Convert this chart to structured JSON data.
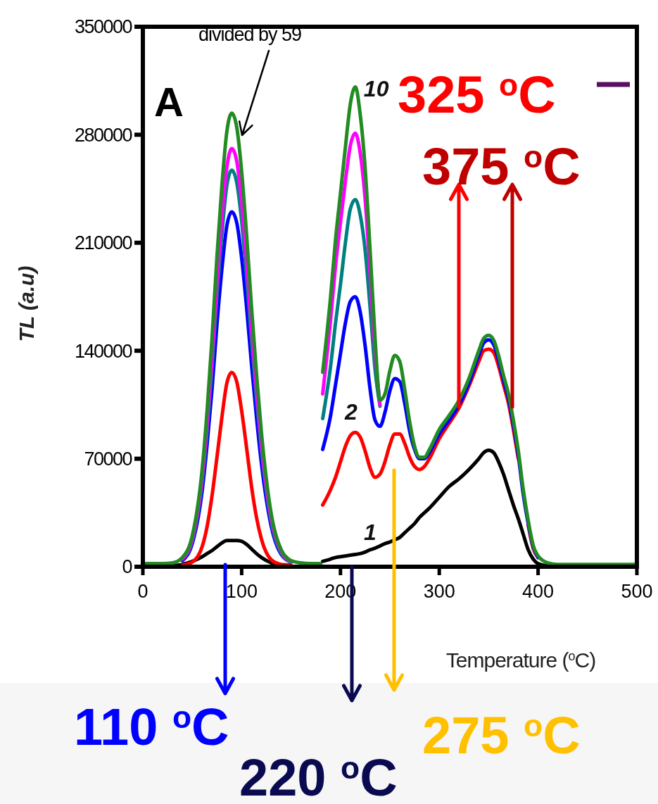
{
  "chart_data": {
    "type": "line",
    "xlabel": "Temperature ($^{o}$C)",
    "ylabel": "TL (a.u)",
    "xlim": [
      0,
      500
    ],
    "xticks": [
      0,
      100,
      200,
      300,
      400,
      500
    ],
    "ylim": [
      0,
      350000
    ],
    "yticks": [
      0,
      70000,
      140000,
      210000,
      280000,
      350000
    ],
    "x": [
      0,
      10,
      20,
      30,
      40,
      50,
      60,
      65,
      70,
      75,
      80,
      85,
      90,
      95,
      100,
      105,
      110,
      115,
      120,
      130,
      140,
      150,
      160,
      170,
      180,
      181,
      182,
      190,
      195,
      200,
      205,
      210,
      215,
      220,
      225,
      230,
      235,
      240,
      245,
      250,
      255,
      260,
      265,
      270,
      275,
      280,
      285,
      290,
      300,
      310,
      320,
      330,
      340,
      345,
      350,
      355,
      360,
      365,
      370,
      375,
      380,
      385,
      390,
      395,
      400,
      410,
      420,
      440,
      460,
      480,
      500
    ],
    "series": [
      {
        "name": "1",
        "color": "#000000",
        "values": [
          0,
          0,
          0,
          500,
          1500,
          3500,
          6500,
          8500,
          10500,
          13000,
          15500,
          17000,
          17000,
          17000,
          16500,
          14500,
          11500,
          8500,
          6000,
          2500,
          800,
          0,
          0,
          0,
          0,
          null,
          3500,
          5000,
          6000,
          6500,
          7000,
          7500,
          8000,
          8500,
          9500,
          11000,
          12000,
          13500,
          15000,
          16000,
          17500,
          19000,
          22000,
          25000,
          28000,
          32000,
          35000,
          38000,
          45000,
          52000,
          57000,
          63000,
          70000,
          74000,
          75500,
          74000,
          68000,
          60000,
          50000,
          40000,
          31000,
          21000,
          11000,
          5000,
          2000,
          500,
          0,
          0,
          0,
          0,
          0
        ]
      },
      {
        "name": "2",
        "color": "#ff0000",
        "values": [
          null,
          null,
          null,
          null,
          1000,
          3000,
          13000,
          26000,
          46000,
          71000,
          97000,
          119000,
          126000,
          120000,
          101000,
          77000,
          52000,
          32000,
          18000,
          4500,
          1500,
          1000,
          null,
          null,
          null,
          null,
          40000,
          50000,
          58000,
          68000,
          78000,
          85000,
          87000,
          84000,
          75000,
          64000,
          58000,
          60000,
          68000,
          79000,
          86000,
          86000,
          80000,
          71000,
          65000,
          63000,
          65000,
          70000,
          83000,
          93000,
          103000,
          117000,
          133000,
          140000,
          141000,
          139000,
          130000,
          118000,
          106000,
          89000,
          70000,
          null,
          27000,
          12000,
          6000,
          null,
          null,
          null,
          null,
          null,
          null
        ]
      },
      {
        "color": "#0000ff",
        "values": [
          null,
          null,
          null,
          null,
          4000,
          15000,
          49000,
          79000,
          115000,
          157000,
          193000,
          221000,
          230000,
          223000,
          200000,
          168000,
          131000,
          97000,
          67000,
          26000,
          8000,
          3000,
          null,
          null,
          null,
          null,
          76000,
          98000,
          118000,
          138000,
          158000,
          172000,
          175000,
          165000,
          143000,
          115000,
          95000,
          91000,
          100000,
          114000,
          122000,
          120000,
          106000,
          88000,
          76000,
          70000,
          70000,
          74000,
          86000,
          95000,
          105000,
          119000,
          137000,
          145000,
          147000,
          144000,
          134000,
          121000,
          109000,
          92000,
          72000,
          47000,
          28000,
          13000,
          6000,
          null,
          null,
          null,
          null,
          null,
          null
        ]
      },
      {
        "color": "#008080",
        "values": [
          null,
          null,
          null,
          null,
          5000,
          17000,
          55000,
          88000,
          129000,
          176000,
          216000,
          247000,
          257000,
          249000,
          224000,
          188000,
          147000,
          109000,
          76000,
          29000,
          9000,
          3000,
          null,
          null,
          null,
          null,
          96000,
          130000,
          158000,
          183000,
          210000,
          232000,
          238000,
          228000,
          205000,
          168000,
          128000,
          104000,
          null,
          null,
          null,
          null,
          null,
          null,
          null,
          null,
          null,
          null,
          null,
          null,
          null,
          null,
          null,
          null,
          null,
          null,
          null,
          null,
          null,
          null,
          null,
          null,
          null,
          null,
          null,
          null,
          null,
          null,
          null,
          null,
          null
        ]
      },
      {
        "color": "#ff00ff",
        "values": [
          null,
          null,
          null,
          null,
          5000,
          18000,
          58000,
          93000,
          136000,
          185000,
          227000,
          259000,
          271000,
          263000,
          236000,
          198000,
          155000,
          115000,
          80000,
          31000,
          10000,
          3500,
          null,
          null,
          null,
          null,
          112000,
          160000,
          195000,
          223000,
          250000,
          273000,
          281000,
          268000,
          238000,
          190000,
          140000,
          105000,
          null,
          null,
          null,
          null,
          null,
          null,
          null,
          null,
          null,
          null,
          null,
          null,
          null,
          null,
          null,
          null,
          null,
          null,
          null,
          null,
          null,
          null,
          null,
          null,
          null,
          null,
          null,
          null,
          null,
          null,
          null,
          null,
          null
        ]
      },
      {
        "name": "10",
        "color": "#228b22",
        "values": [
          2000,
          2000,
          2000,
          2500,
          6000,
          20000,
          63000,
          101000,
          148000,
          201000,
          247000,
          282000,
          294000,
          285000,
          256000,
          215000,
          168000,
          125000,
          87000,
          34000,
          11000,
          4000,
          2500,
          2000,
          2000,
          null,
          126000,
          175000,
          212000,
          242000,
          272000,
          300000,
          311000,
          293000,
          258000,
          205000,
          148000,
          108000,
          112000,
          127000,
          137000,
          133000,
          115000,
          94000,
          78000,
          71000,
          71000,
          76000,
          89000,
          98000,
          108000,
          122000,
          140000,
          148000,
          150000,
          147000,
          137000,
          124000,
          112000,
          95000,
          75000,
          50000,
          30000,
          14000,
          7000,
          2500,
          1500,
          1500,
          1500,
          1500,
          1500
        ]
      }
    ],
    "annotations": [
      "A",
      "divided by 59",
      "325 $^{o}$C",
      "375 $^{o}$C",
      "110 $^{o}$C",
      "220 $^{o}$C",
      "275 $^{o}$C"
    ]
  }
}
